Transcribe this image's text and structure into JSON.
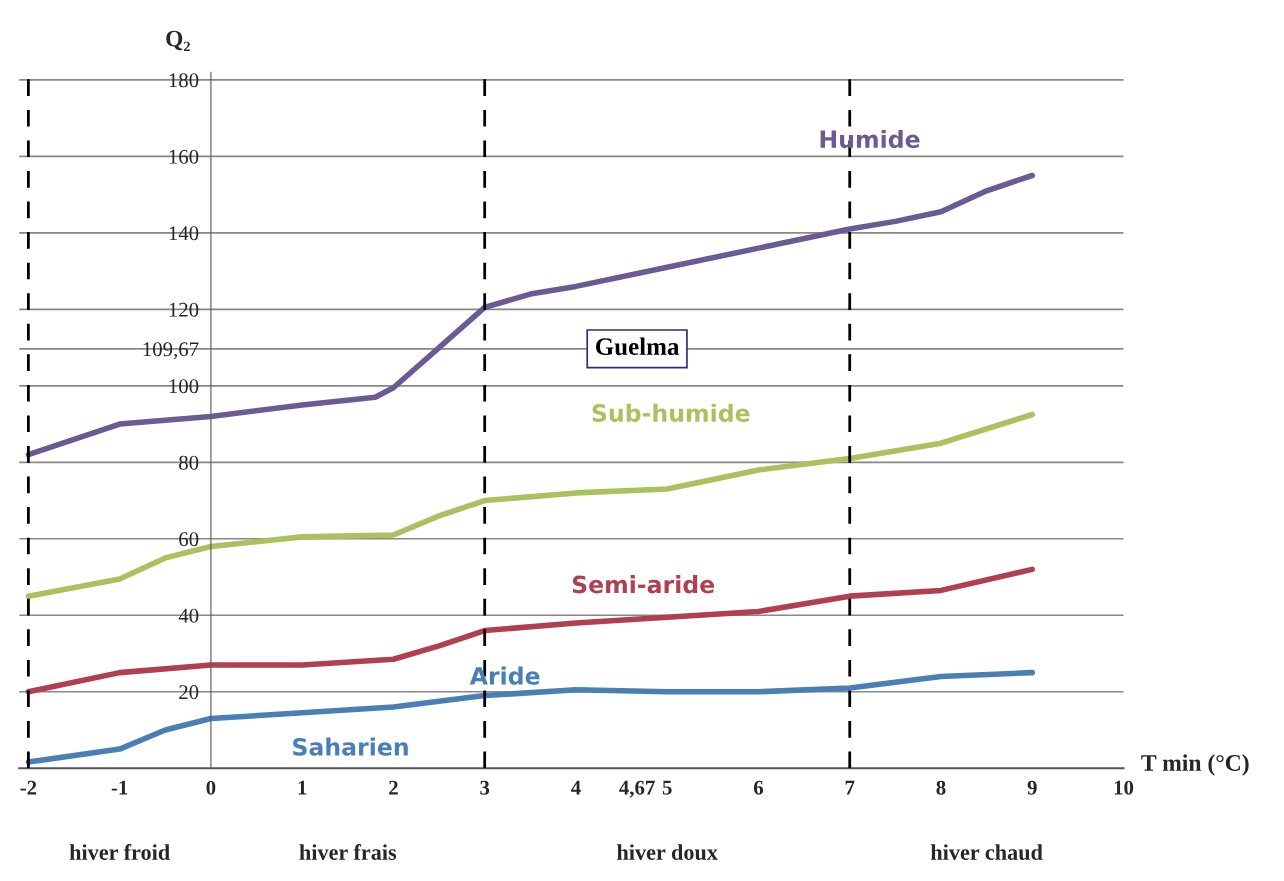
{
  "chart_data": {
    "type": "line",
    "xlabel": "T min (°C)",
    "ylabel": "Q₂",
    "xlim": [
      -2.1,
      10
    ],
    "ylim": [
      0,
      182
    ],
    "xticks": [
      -2,
      -1,
      0,
      1,
      2,
      3,
      4,
      {
        "value": 4.67,
        "label": "4,67"
      },
      5,
      6,
      7,
      8,
      9,
      10
    ],
    "yticks": [
      20,
      40,
      60,
      80,
      100,
      {
        "value": 109.67,
        "label": "109,67"
      },
      120,
      140,
      160,
      180
    ],
    "grid": "y",
    "marker": "none",
    "line_style": "solid",
    "series": [
      {
        "color": "#6b5b95",
        "x": [
          -2,
          -1,
          0,
          1,
          1.8,
          2,
          2.5,
          3,
          3.5,
          4,
          5,
          6,
          7,
          7.5,
          8,
          8.5,
          9
        ],
        "values": [
          82,
          90,
          92,
          95,
          97,
          99.5,
          110,
          120.5,
          124,
          126,
          131,
          136,
          141,
          143,
          145.5,
          151,
          155
        ]
      },
      {
        "color": "#a9c25d",
        "x": [
          -2,
          -1,
          -0.5,
          0,
          1,
          2,
          2.5,
          3,
          4,
          5,
          6,
          7,
          8,
          9
        ],
        "values": [
          45,
          49.5,
          55,
          58,
          60.5,
          61,
          66,
          70,
          72,
          73,
          78,
          81,
          85,
          92.5
        ]
      },
      {
        "color": "#b0404f",
        "x": [
          -2,
          -1,
          0,
          1,
          2,
          2.5,
          3,
          4,
          5,
          6,
          7,
          8,
          9
        ],
        "values": [
          20,
          25,
          27,
          27,
          28.5,
          32,
          36,
          38,
          39.5,
          41,
          45,
          46.5,
          52
        ]
      },
      {
        "color": "#4a7fb5",
        "x": [
          -2,
          -1,
          -0.5,
          0,
          1,
          2,
          3,
          4,
          5,
          6,
          7,
          8,
          9
        ],
        "values": [
          1.6,
          5,
          10,
          13,
          14.5,
          16,
          19,
          20.5,
          20,
          20,
          21,
          24,
          25
        ]
      }
    ],
    "ref_lines": [
      {
        "axis": "x",
        "value": -2,
        "line_style": "dashed",
        "color": "#000000"
      },
      {
        "axis": "x",
        "value": 3,
        "line_style": "dashed",
        "color": "#000000"
      },
      {
        "axis": "x",
        "value": 7,
        "line_style": "dashed",
        "color": "#000000"
      }
    ],
    "annotations": [
      "Humide",
      "Sub-humide",
      "Semi-aride",
      "Aride",
      "Saharien",
      "Guelma",
      "hiver froid",
      "hiver frais",
      "hiver doux",
      "hiver chaud"
    ]
  }
}
